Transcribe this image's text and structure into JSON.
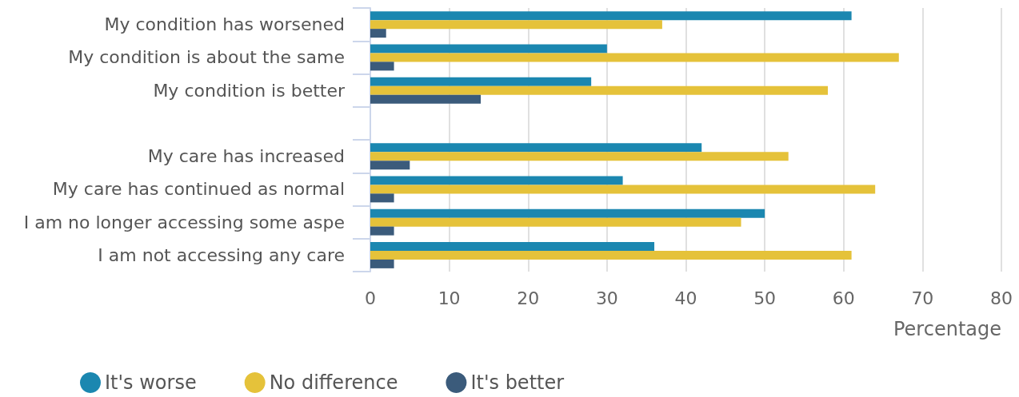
{
  "chart_data": {
    "type": "bar",
    "orientation": "horizontal",
    "xlabel": "Percentage",
    "categories": [
      "My condition has worsened",
      "My condition is about the same",
      "My condition is better",
      null,
      "My care has increased",
      "My care has continued as normal",
      "I am no longer accessing some aspe",
      "I am not accessing any care"
    ],
    "series": [
      {
        "name": "It's worse",
        "color": "#1b87b0",
        "values": [
          61,
          30,
          28,
          null,
          42,
          32,
          50,
          36
        ]
      },
      {
        "name": "No difference",
        "color": "#e5c23a",
        "values": [
          37,
          67,
          58,
          null,
          53,
          64,
          47,
          61
        ]
      },
      {
        "name": "It's better",
        "color": "#3b5b7b",
        "values": [
          2,
          3,
          14,
          null,
          5,
          3,
          3,
          3
        ]
      }
    ],
    "xlim": [
      0,
      80
    ],
    "xticks": [
      0,
      10,
      20,
      30,
      40,
      50,
      60,
      70,
      80
    ],
    "grid": "x",
    "legend": "bottom left"
  }
}
